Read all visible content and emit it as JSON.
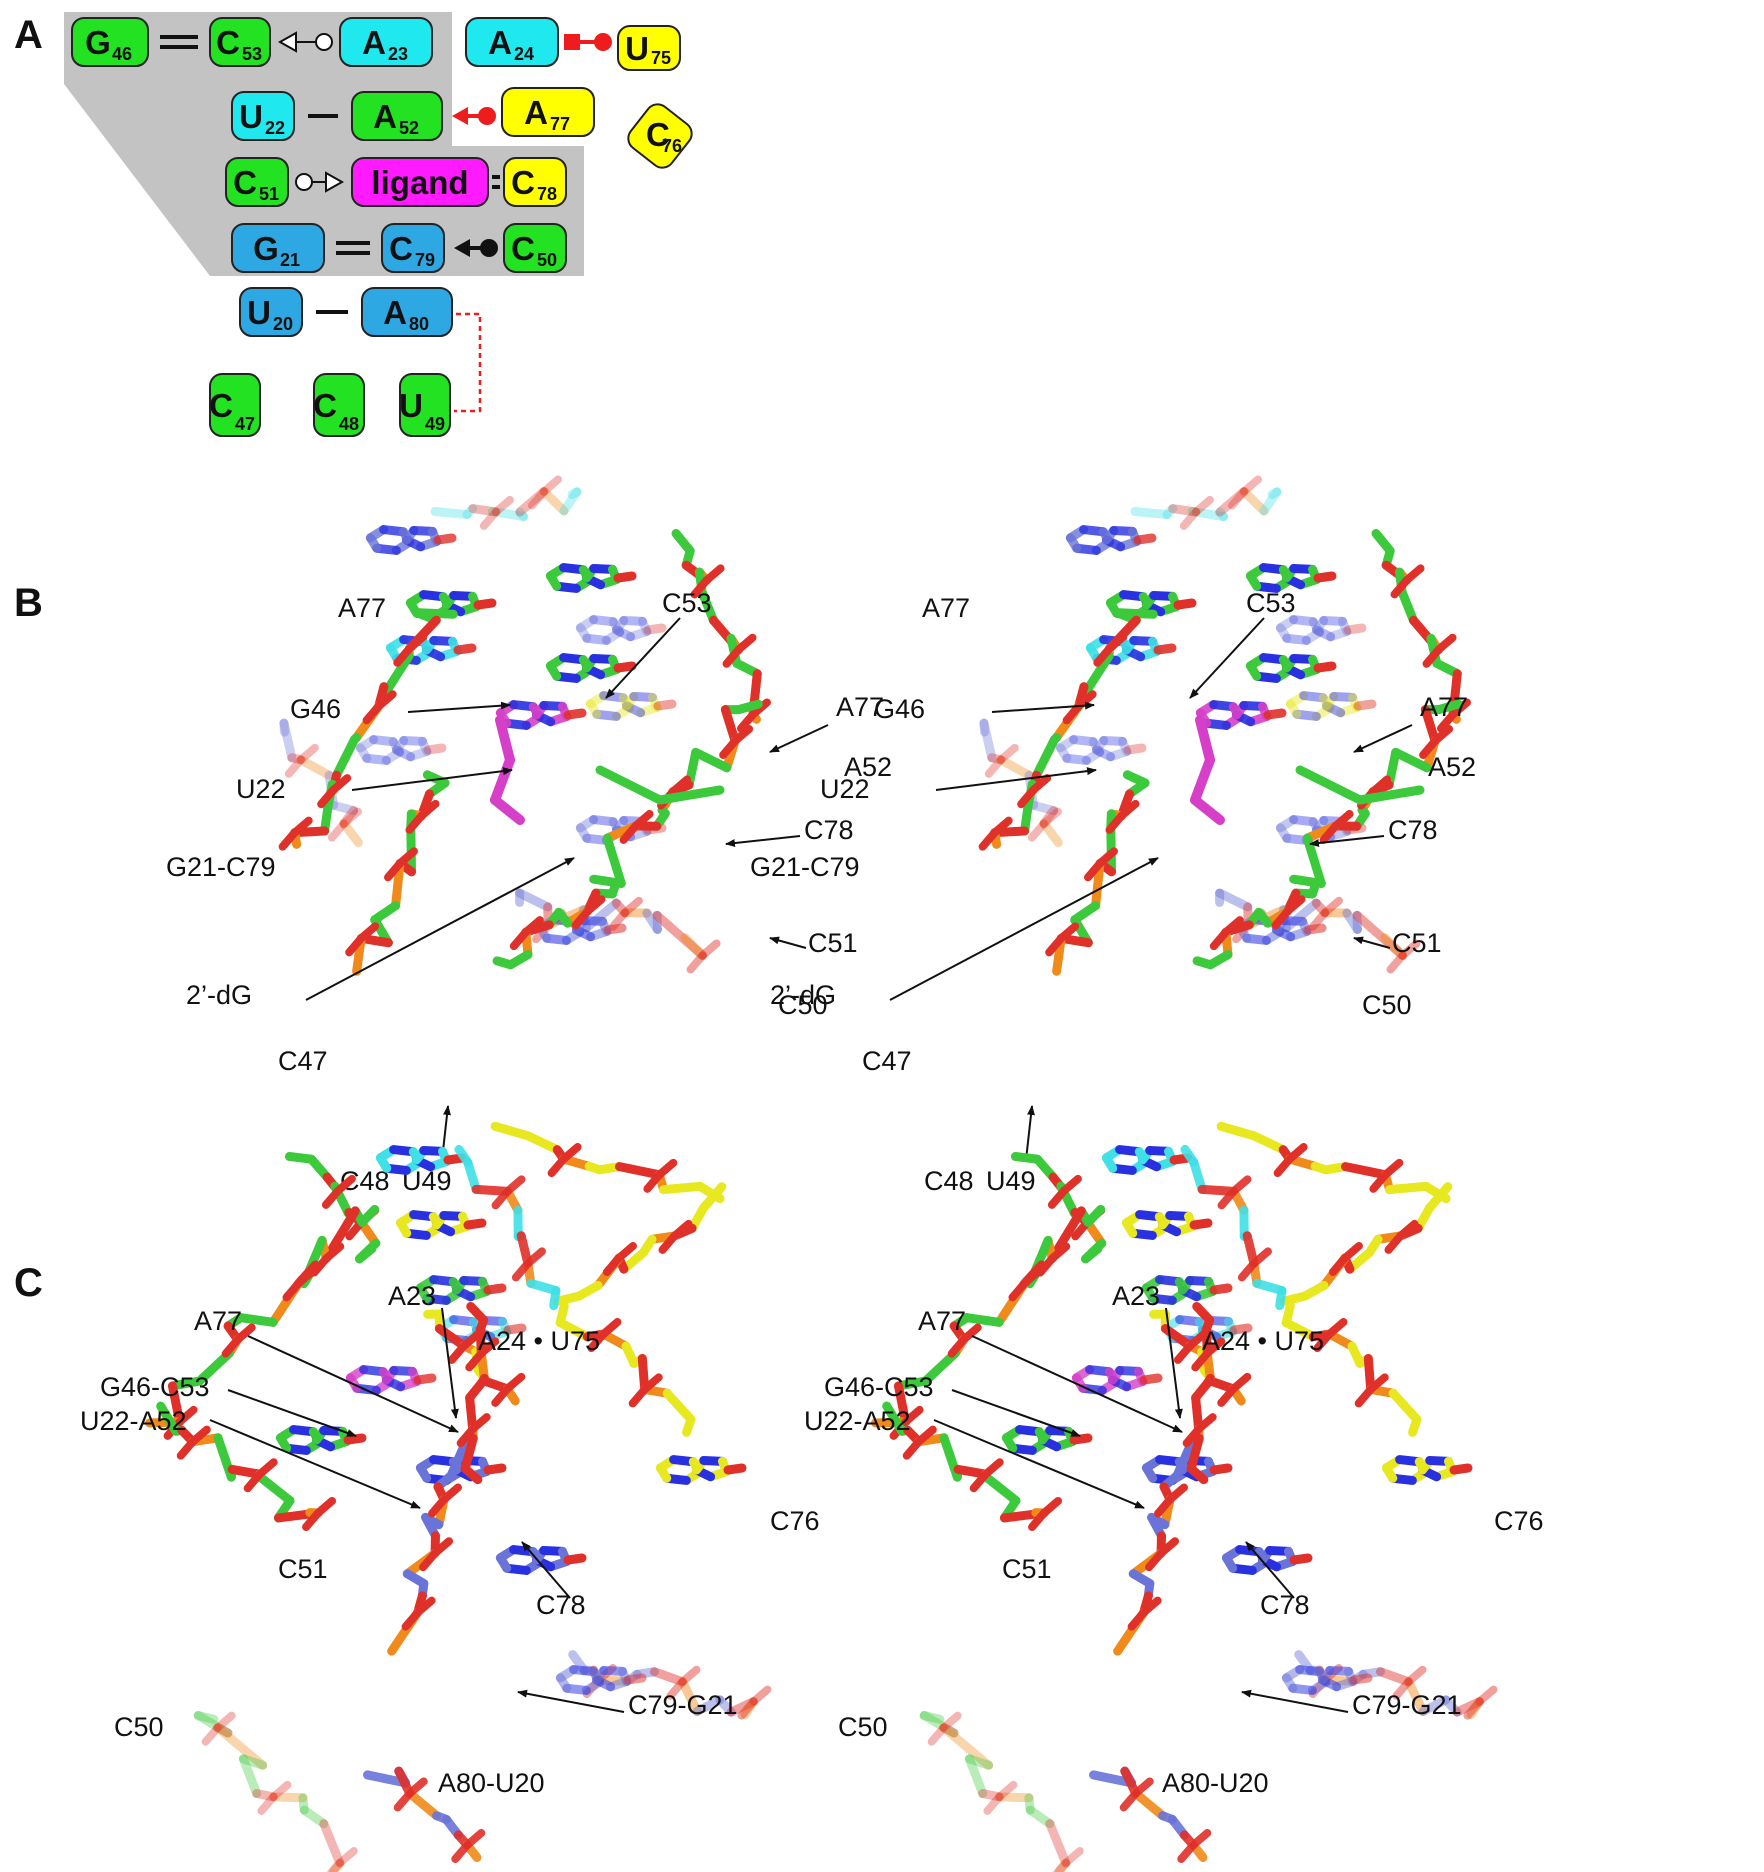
{
  "panels": {
    "a": "A",
    "b": "B",
    "c": "C"
  },
  "colors": {
    "green": "#22e222",
    "cyan": "#1fe8ef",
    "yellow": "#ffff00",
    "magenta": "#ff1aff",
    "blue": "#2ea8e3",
    "box_stroke": "#222222",
    "shade": "#c3c3c3",
    "red": "#ee1c1c",
    "black": "#111111",
    "stick_green": "#3cc93c",
    "stick_cyan": "#3fe0e6",
    "stick_yellow": "#e8e820",
    "stick_magenta": "#d640c8",
    "stick_blue": "#6a74d8",
    "stick_red": "#e0302a",
    "stick_orange": "#f08a1a",
    "stick_nblue": "#2830e0"
  },
  "diagram": {
    "nodes": [
      {
        "id": "G46",
        "base": "G",
        "num": "46",
        "color": "green"
      },
      {
        "id": "C53",
        "base": "C",
        "num": "53",
        "color": "green"
      },
      {
        "id": "A23",
        "base": "A",
        "num": "23",
        "color": "cyan"
      },
      {
        "id": "A24",
        "base": "A",
        "num": "24",
        "color": "cyan"
      },
      {
        "id": "U75",
        "base": "U",
        "num": "75",
        "color": "yellow"
      },
      {
        "id": "U22",
        "base": "U",
        "num": "22",
        "color": "cyan"
      },
      {
        "id": "A52",
        "base": "A",
        "num": "52",
        "color": "green"
      },
      {
        "id": "A77",
        "base": "A",
        "num": "77",
        "color": "yellow"
      },
      {
        "id": "C76",
        "base": "C",
        "num": "76",
        "color": "yellow"
      },
      {
        "id": "C51",
        "base": "C",
        "num": "51",
        "color": "green"
      },
      {
        "id": "ligand",
        "base": "ligand",
        "num": "",
        "color": "magenta"
      },
      {
        "id": "C78",
        "base": "C",
        "num": "78",
        "color": "yellow"
      },
      {
        "id": "G21",
        "base": "G",
        "num": "21",
        "color": "blue"
      },
      {
        "id": "C79",
        "base": "C",
        "num": "79",
        "color": "blue"
      },
      {
        "id": "C50",
        "base": "C",
        "num": "50",
        "color": "green"
      },
      {
        "id": "U20",
        "base": "U",
        "num": "20",
        "color": "blue"
      },
      {
        "id": "A80",
        "base": "A",
        "num": "80",
        "color": "blue"
      },
      {
        "id": "C47",
        "base": "C",
        "num": "47",
        "color": "green"
      },
      {
        "id": "C48",
        "base": "C",
        "num": "48",
        "color": "green"
      },
      {
        "id": "U49",
        "base": "U",
        "num": "49",
        "color": "green"
      }
    ],
    "interactions": [
      {
        "from": "G46",
        "to": "C53",
        "type": "double-line"
      },
      {
        "from": "C53",
        "to": "A23",
        "type": "open-triangle-circle"
      },
      {
        "from": "A24",
        "to": "U75",
        "type": "red-square-circle"
      },
      {
        "from": "U22",
        "to": "A52",
        "type": "single-line"
      },
      {
        "from": "A52",
        "to": "A77",
        "type": "red-arrow-circle"
      },
      {
        "from": "C51",
        "to": "ligand",
        "type": "open-circle-triangle"
      },
      {
        "from": "ligand",
        "to": "C78",
        "type": "double-line"
      },
      {
        "from": "G21",
        "to": "C79",
        "type": "double-line"
      },
      {
        "from": "C79",
        "to": "C50",
        "type": "black-arrow-circle"
      },
      {
        "from": "U20",
        "to": "A80",
        "type": "single-line"
      },
      {
        "from": "A80",
        "to": "U49",
        "type": "red-dotted"
      }
    ]
  },
  "panel_b": {
    "labels": [
      "A77",
      "C53",
      "G46",
      "A77",
      "U22",
      "A52",
      "C78",
      "G21-C79",
      "C51",
      "2’-dG",
      "C50",
      "C47",
      "C48",
      "U49"
    ]
  },
  "panel_c": {
    "labels": [
      "A23",
      "A77",
      "A24 • U75",
      "G46-C53",
      "U22-A52",
      "C76",
      "C51",
      "C78",
      "C79-G21",
      "C50",
      "A80-U20"
    ]
  }
}
